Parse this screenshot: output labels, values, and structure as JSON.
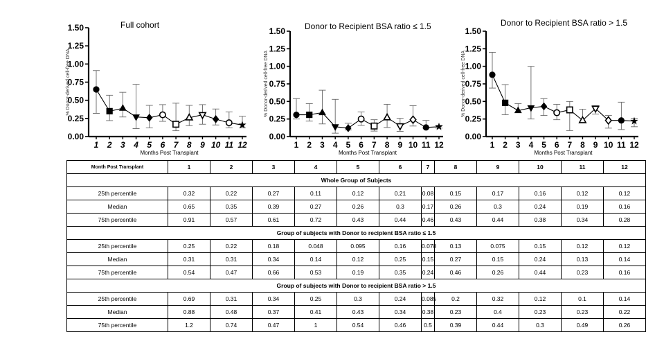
{
  "chart_data": [
    {
      "type": "line",
      "title": "Full cohort",
      "ylabel": "% Donor-derived cell-free DNA",
      "xlabel": "Months Post Transplant",
      "x": [
        1,
        2,
        3,
        4,
        5,
        6,
        7,
        8,
        9,
        10,
        11,
        12
      ],
      "ylim": [
        0,
        1.5
      ],
      "yticks": [
        "0.00",
        "0.25",
        "0.50",
        "0.75",
        "1.00",
        "1.25",
        "1.50"
      ],
      "median": [
        0.65,
        0.35,
        0.39,
        0.27,
        0.26,
        0.3,
        0.17,
        0.26,
        0.3,
        0.24,
        0.19,
        0.16
      ],
      "p25": [
        0.32,
        0.22,
        0.27,
        0.11,
        0.12,
        0.21,
        0.08,
        0.15,
        0.17,
        0.16,
        0.12,
        0.12
      ],
      "p75": [
        0.91,
        0.57,
        0.61,
        0.72,
        0.43,
        0.44,
        0.46,
        0.43,
        0.44,
        0.38,
        0.34,
        0.28
      ],
      "markers": [
        "circle",
        "square",
        "triangle",
        "triangle-down",
        "diamond",
        "circle-open",
        "square-open",
        "triangle-open",
        "triangle-down-open",
        "diamond",
        "circle-open",
        "star"
      ]
    },
    {
      "type": "line",
      "title": "Donor to Recipient BSA ratio ≤ 1.5",
      "ylabel": "% Donor-derived cell-free DNA",
      "xlabel": "Months Post Transplant",
      "x": [
        1,
        2,
        3,
        4,
        5,
        6,
        7,
        8,
        9,
        10,
        11,
        12
      ],
      "ylim": [
        0,
        1.5
      ],
      "yticks": [
        "0.00",
        "0.25",
        "0.50",
        "0.75",
        "1.00",
        "1.25",
        "1.50"
      ],
      "median": [
        0.31,
        0.31,
        0.34,
        0.14,
        0.12,
        0.25,
        0.15,
        0.27,
        0.15,
        0.24,
        0.13,
        0.14
      ],
      "p25": [
        0.25,
        0.22,
        0.18,
        0.048,
        0.095,
        0.16,
        0.078,
        0.13,
        0.075,
        0.15,
        0.12,
        0.12
      ],
      "p75": [
        0.54,
        0.47,
        0.66,
        0.53,
        0.19,
        0.35,
        0.24,
        0.46,
        0.26,
        0.44,
        0.23,
        0.16
      ],
      "markers": [
        "circle",
        "square",
        "triangle",
        "triangle-down",
        "diamond",
        "circle-open",
        "square-open",
        "triangle-open",
        "triangle-down-open",
        "diamond-open",
        "circle",
        "star"
      ]
    },
    {
      "type": "line",
      "title": "Donor to Recipient BSA ratio > 1.5",
      "ylabel": "% Donor-derived cell-free DNA",
      "xlabel": "Months Post Transplant",
      "x": [
        1,
        2,
        3,
        4,
        5,
        6,
        7,
        8,
        9,
        10,
        11,
        12
      ],
      "ylim": [
        0,
        1.5
      ],
      "yticks": [
        "0.00",
        "0.25",
        "0.50",
        "0.75",
        "1.00",
        "1.25",
        "1.50"
      ],
      "median": [
        0.88,
        0.48,
        0.37,
        0.41,
        0.43,
        0.34,
        0.38,
        0.23,
        0.4,
        0.23,
        0.23,
        0.22
      ],
      "p25": [
        0.69,
        0.31,
        0.34,
        0.25,
        0.3,
        0.24,
        0.085,
        0.2,
        0.32,
        0.12,
        0.1,
        0.14
      ],
      "p75": [
        1.2,
        0.74,
        0.47,
        1,
        0.54,
        0.46,
        0.5,
        0.39,
        0.44,
        0.3,
        0.49,
        0.26
      ],
      "markers": [
        "circle",
        "square",
        "triangle",
        "triangle-down",
        "diamond",
        "circle-open",
        "square-open",
        "triangle-open",
        "triangle-down-open",
        "diamond-open",
        "circle",
        "star"
      ]
    }
  ],
  "table": {
    "header": [
      "Month Post Transplant",
      "1",
      "2",
      "3",
      "4",
      "5",
      "6",
      "7",
      "8",
      "9",
      "10",
      "11",
      "12"
    ],
    "sections": [
      {
        "title": "Whole Group of Subjects",
        "rows": [
          [
            "25th percentile",
            "0.32",
            "0.22",
            "0.27",
            "0.11",
            "0.12",
            "0.21",
            "0.08",
            "0.15",
            "0.17",
            "0.16",
            "0.12",
            "0.12"
          ],
          [
            "Median",
            "0.65",
            "0.35",
            "0.39",
            "0.27",
            "0.26",
            "0.3",
            "0.17",
            "0.26",
            "0.3",
            "0.24",
            "0.19",
            "0.16"
          ],
          [
            "75th percentile",
            "0.91",
            "0.57",
            "0.61",
            "0.72",
            "0.43",
            "0.44",
            "0.46",
            "0.43",
            "0.44",
            "0.38",
            "0.34",
            "0.28"
          ]
        ]
      },
      {
        "title": "Group of subjects with Donor to recipient BSA ratio ≤ 1.5",
        "rows": [
          [
            "25th percentile",
            "0.25",
            "0.22",
            "0.18",
            "0.048",
            "0.095",
            "0.16",
            "0.078",
            "0.13",
            "0.075",
            "0.15",
            "0.12",
            "0.12"
          ],
          [
            "Median",
            "0.31",
            "0.31",
            "0.34",
            "0.14",
            "0.12",
            "0.25",
            "0.15",
            "0.27",
            "0.15",
            "0.24",
            "0.13",
            "0.14"
          ],
          [
            "75th percentile",
            "0.54",
            "0.47",
            "0.66",
            "0.53",
            "0.19",
            "0.35",
            "0.24",
            "0.46",
            "0.26",
            "0.44",
            "0.23",
            "0.16"
          ]
        ]
      },
      {
        "title": "Group of subjects with Donor to recipient BSA ratio > 1.5",
        "rows": [
          [
            "25th percentile",
            "0.69",
            "0.31",
            "0.34",
            "0.25",
            "0.3",
            "0.24",
            "0.085",
            "0.2",
            "0.32",
            "0.12",
            "0.1",
            "0.14"
          ],
          [
            "Median",
            "0.88",
            "0.48",
            "0.37",
            "0.41",
            "0.43",
            "0.34",
            "0.38",
            "0.23",
            "0.4",
            "0.23",
            "0.23",
            "0.22"
          ],
          [
            "75th percentile",
            "1.2",
            "0.74",
            "0.47",
            "1",
            "0.54",
            "0.46",
            "0.5",
            "0.39",
            "0.44",
            "0.3",
            "0.49",
            "0.26"
          ]
        ]
      }
    ]
  }
}
